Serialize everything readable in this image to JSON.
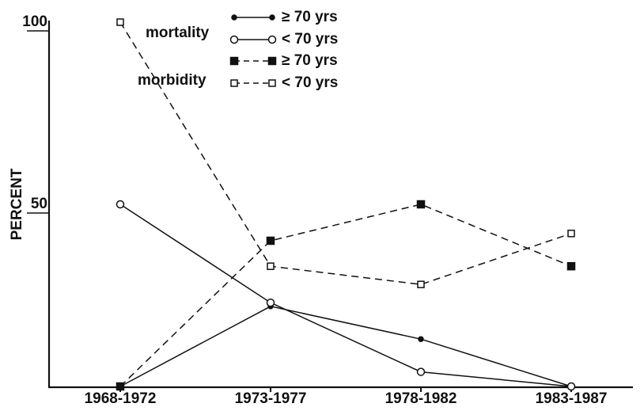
{
  "chart_data": {
    "type": "line",
    "ylabel": "PERCENT",
    "categories": [
      "1968-1972",
      "1973-1977",
      "1978-1982",
      "1983-1987"
    ],
    "legend_groups": [
      "mortality",
      "morbidity"
    ],
    "series": [
      {
        "name": "≥ 70 yrs",
        "group": 0,
        "color": "#111",
        "dashed": false,
        "marker": "filled-circle",
        "values": [
          0,
          22,
          13,
          0
        ]
      },
      {
        "name": "< 70 yrs",
        "group": 0,
        "color": "#111",
        "dashed": false,
        "marker": "open-circle",
        "values": [
          50,
          23,
          4,
          0
        ]
      },
      {
        "name": "≥ 70 yrs",
        "group": 1,
        "color": "#111",
        "dashed": true,
        "marker": "filled-square",
        "values": [
          0,
          40,
          50,
          33
        ]
      },
      {
        "name": "< 70 yrs",
        "group": 1,
        "color": "#111",
        "dashed": true,
        "marker": "open-square",
        "values": [
          100,
          33,
          28,
          42
        ]
      }
    ],
    "ylim": [
      0,
      100
    ],
    "yticks": [
      50,
      100
    ]
  }
}
